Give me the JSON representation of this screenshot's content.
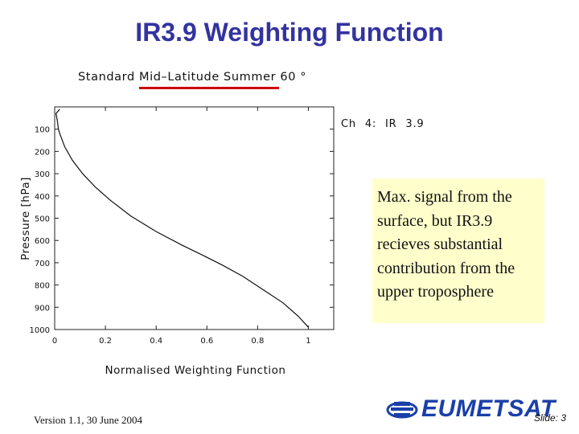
{
  "slide": {
    "title": "IR3.9 Weighting Function",
    "footer_version": "Version 1.1, 30 June 2004",
    "slide_number": "Slide: 3",
    "logo_text": "EUMETSAT",
    "annotation": "Max. signal from the surface, but IR3.9 recieves substantial contribution from the upper troposphere"
  },
  "colors": {
    "title": "#3333a0",
    "annotation_bg": "#ffffcc",
    "title_underline": "#cc0000",
    "logo": "#1a3fa8"
  },
  "chart_data": {
    "type": "line",
    "title": "Standard Mid–Latitude Summer 60 °",
    "channel_label": "Ch  4: IR  3.9",
    "xlabel": "Normalised Weighting Function",
    "ylabel": "Pressure [hPa]",
    "xlim": [
      0,
      1.1
    ],
    "ylim": [
      1000,
      0
    ],
    "x_ticks": [
      0,
      0.2,
      0.4,
      0.6,
      0.8,
      1
    ],
    "x_tick_labels": [
      "0",
      "0.2",
      "0.4",
      "0.6",
      "0.8",
      "1"
    ],
    "y_ticks": [
      100,
      200,
      300,
      400,
      500,
      600,
      700,
      800,
      900,
      1000
    ],
    "y_tick_labels": [
      "100",
      "200",
      "300",
      "400",
      "500",
      "600",
      "700",
      "800",
      "900",
      "1000"
    ],
    "grid": false,
    "series": [
      {
        "x": [
          0.02,
          0.005,
          0.01,
          0.015,
          0.02,
          0.04,
          0.07,
          0.11,
          0.16,
          0.22,
          0.3,
          0.4,
          0.5,
          0.59,
          0.66,
          0.74,
          0.82,
          0.9,
          0.96,
          1.0
        ],
        "y": [
          10,
          30,
          60,
          100,
          120,
          180,
          240,
          300,
          360,
          420,
          490,
          560,
          620,
          670,
          710,
          760,
          820,
          880,
          940,
          990
        ]
      }
    ]
  }
}
